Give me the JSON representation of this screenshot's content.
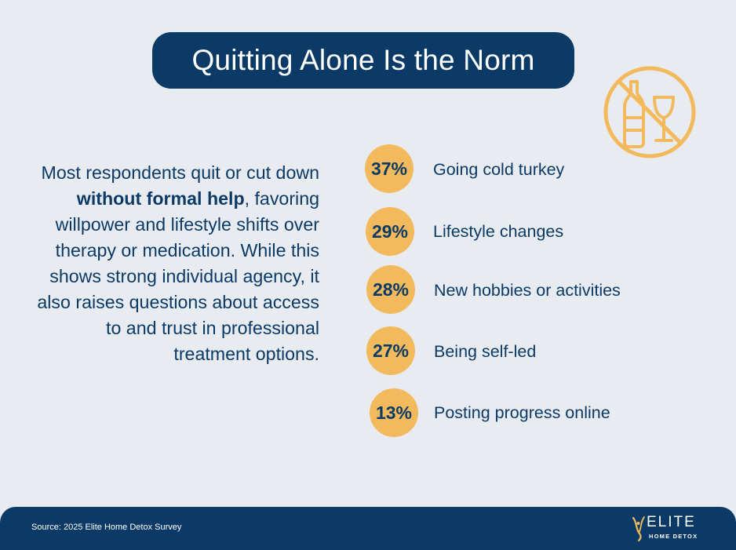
{
  "title": "Quitting Alone Is the Norm",
  "icons": {
    "header_icon": "no-alcohol-icon",
    "logo_mark": "elite-flame-mark-icon"
  },
  "body": {
    "part1": "Most respondents quit or cut down ",
    "bold": "without formal help",
    "part2": ", favoring willpower and lifestyle shifts over therapy or medication. While this shows strong individual agency, it also raises questions about access to and trust in professional treatment options."
  },
  "stats": [
    {
      "percent": "37%",
      "label": "Going cold turkey"
    },
    {
      "percent": "29%",
      "label": "Lifestyle changes"
    },
    {
      "percent": "28%",
      "label": "New hobbies or activities"
    },
    {
      "percent": "27%",
      "label": "Being self-led"
    },
    {
      "percent": "13%",
      "label": "Posting progress online"
    }
  ],
  "footer": {
    "source": "Source: 2025 Elite Home Detox Survey",
    "logo_name": "ELITE",
    "logo_sub": "HOME DETOX"
  },
  "colors": {
    "navy": "#0b3a66",
    "accent": "#f3b95d",
    "background": "#e8ecf1"
  }
}
